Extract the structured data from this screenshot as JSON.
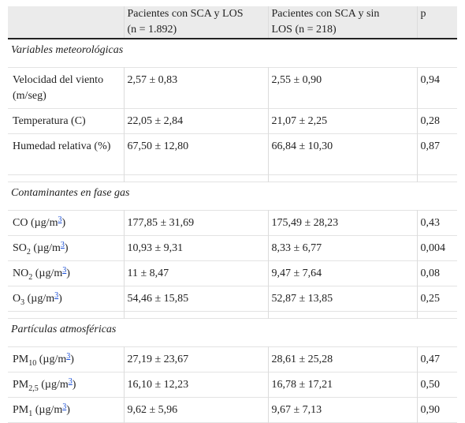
{
  "header": {
    "group1_line1": "Pacientes con SCA y LOS",
    "group1_line2": "(n = 1.892)",
    "group2_line1": "Pacientes con SCA y sin",
    "group2_line2": "LOS (n = 218)",
    "p": "p"
  },
  "sections": [
    {
      "title": "Variables meteorológicas",
      "rows": [
        {
          "name": "Velocidad del viento (m/seg)",
          "g1": "2,57 ± 0,83",
          "g2": "2,55 ± 0,90",
          "p": "0,94"
        },
        {
          "name": "Temperatura (C)",
          "g1": "22,05 ± 2,84",
          "g2": "21,07 ± 2,25",
          "p": "0,28"
        },
        {
          "name": "Humedad relativa (%)",
          "g1": "67,50 ± 12,80",
          "g2": "66,84 ± 10,30",
          "p": "0,87"
        }
      ]
    },
    {
      "title": "Contaminantes en fase gas",
      "rows": [
        {
          "name": "CO",
          "sub": "",
          "unit": "(µg/m",
          "sup": "3",
          "close": ")",
          "g1": "177,85 ± 31,69",
          "g2": "175,49 ± 28,23",
          "p": "0,43"
        },
        {
          "name": "SO",
          "sub": "2",
          "unit": "(µg/m",
          "sup": "3",
          "close": ")",
          "g1": "10,93 ± 9,31",
          "g2": "8,33 ± 6,77",
          "p": "0,004"
        },
        {
          "name": "NO",
          "sub": "2",
          "unit": "(µg/m",
          "sup": "3",
          "close": ")",
          "g1": "11 ± 8,47",
          "g2": "9,47 ± 7,64",
          "p": "0,08"
        },
        {
          "name": "O",
          "sub": "3",
          "unit": "(µg/m",
          "sup": "3",
          "close": ")",
          "g1": "54,46 ± 15,85",
          "g2": "52,87 ± 13,85",
          "p": "0,25"
        }
      ]
    },
    {
      "title": "Partículas atmosféricas",
      "rows": [
        {
          "name": "PM",
          "sub": "10",
          "unit": "(µg/m",
          "sup": "3",
          "close": ")",
          "g1": "27,19 ± 23,67",
          "g2": "28,61 ± 25,28",
          "p": "0,47"
        },
        {
          "name": "PM",
          "sub": "2,5",
          "unit": "(µg/m",
          "sup": "3",
          "close": ")",
          "g1": "16,10 ± 12,23",
          "g2": "16,78 ± 17,21",
          "p": "0,50"
        },
        {
          "name": "PM",
          "sub": "1",
          "unit": "(µg/m",
          "sup": "3",
          "close": ")",
          "g1": "9,62 ± 5,96",
          "g2": "9,67 ± 7,13",
          "p": "0,90"
        }
      ]
    }
  ]
}
